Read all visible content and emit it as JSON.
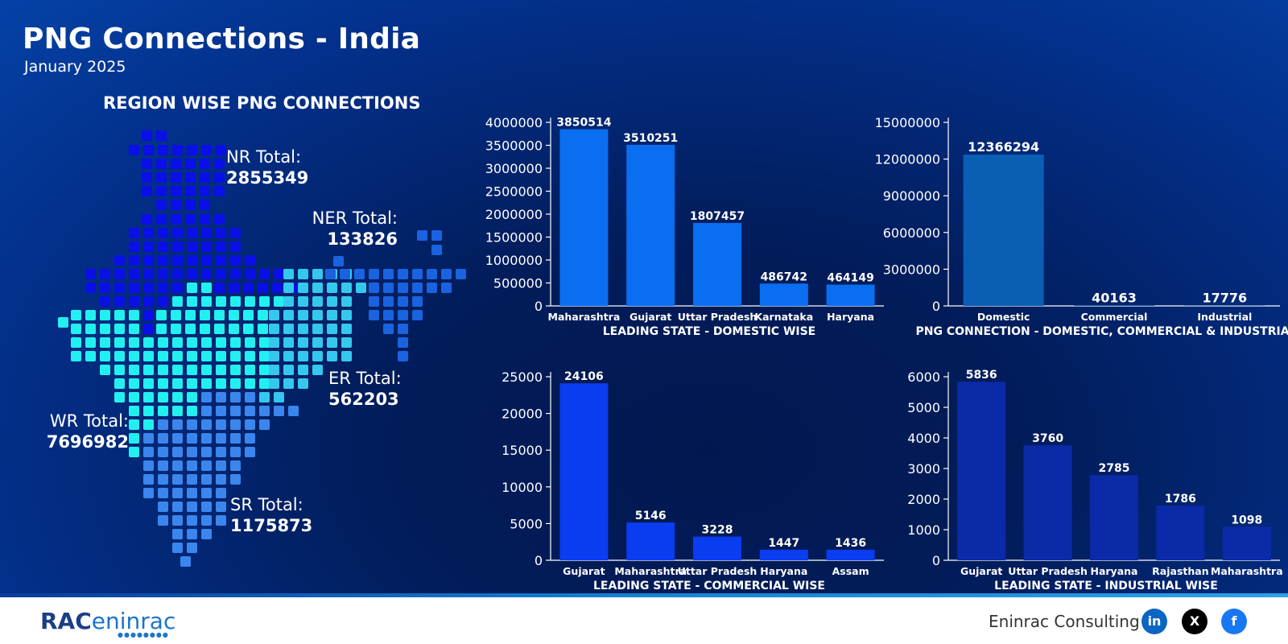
{
  "header": {
    "title": "PNG Connections - India",
    "subtitle": "January 2025"
  },
  "map": {
    "title": "REGION WISE PNG CONNECTIONS",
    "regions": [
      {
        "label": "NR Total:",
        "value": "2855349",
        "color": "#0a0fe8"
      },
      {
        "label": "NER Total:",
        "value": "133826",
        "color": "#1a63e0"
      },
      {
        "label": "ER Total:",
        "value": "562203",
        "color": "#35c8ef"
      },
      {
        "label": "WR Total:",
        "value": "7696982",
        "color": "#22f0f0"
      },
      {
        "label": "SR Total:",
        "value": "1175873",
        "color": "#3a86ee"
      }
    ]
  },
  "chart_data": [
    {
      "type": "bar",
      "title": "LEADING STATE - DOMESTIC WISE",
      "categories": [
        "Maharashtra",
        "Gujarat",
        "Uttar Pradesh",
        "Karnataka",
        "Haryana"
      ],
      "values": [
        3850514,
        3510251,
        1807457,
        486742,
        464149
      ],
      "ylim": [
        0,
        4000000
      ],
      "yticks": [
        "0",
        "500000",
        "1000000",
        "1500000",
        "2000000",
        "2500000",
        "3000000",
        "3500000",
        "4000000"
      ],
      "color": "#0a6ef0",
      "grid": false
    },
    {
      "type": "bar",
      "title": "PNG CONNECTION -  DOMESTIC, COMMERCIAL & INDUSTRIAL",
      "categories": [
        "Domestic",
        "Commercial",
        "Industrial"
      ],
      "values": [
        12366294,
        40163,
        17776
      ],
      "ylim": [
        0,
        15000000
      ],
      "yticks": [
        "0",
        "3000000",
        "6000000",
        "9000000",
        "12000000",
        "15000000"
      ],
      "color": "#0a5fb5",
      "grid": false
    },
    {
      "type": "bar",
      "title": "LEADING STATE - COMMERCIAL WISE",
      "categories": [
        "Gujarat",
        "Maharashtra",
        "Uttar Pradesh",
        "Haryana",
        "Assam"
      ],
      "values": [
        24106,
        5146,
        3228,
        1447,
        1436
      ],
      "ylim": [
        0,
        25000
      ],
      "yticks": [
        "0",
        "5000",
        "10000",
        "15000",
        "20000",
        "25000"
      ],
      "color": "#0a3cf0",
      "grid": false
    },
    {
      "type": "bar",
      "title": "LEADING STATE - INDUSTRIAL WISE",
      "categories": [
        "Gujarat",
        "Uttar Pradesh",
        "Haryana",
        "Rajasthan",
        "Maharashtra"
      ],
      "values": [
        5836,
        3760,
        2785,
        1786,
        1098
      ],
      "ylim": [
        0,
        6000
      ],
      "yticks": [
        "0",
        "1000",
        "2000",
        "3000",
        "4000",
        "5000",
        "6000"
      ],
      "color": "#0a2aa8",
      "grid": false
    }
  ],
  "footer": {
    "logo_rac": "RAC",
    "logo_text": "eninrac",
    "company": "Eninrac Consulting",
    "social": [
      {
        "icon": "linkedin-icon",
        "glyph": "in",
        "color": "#0a66c2"
      },
      {
        "icon": "x-icon",
        "glyph": "X",
        "color": "#000000"
      },
      {
        "icon": "facebook-icon",
        "glyph": "f",
        "color": "#1877f2"
      }
    ]
  }
}
